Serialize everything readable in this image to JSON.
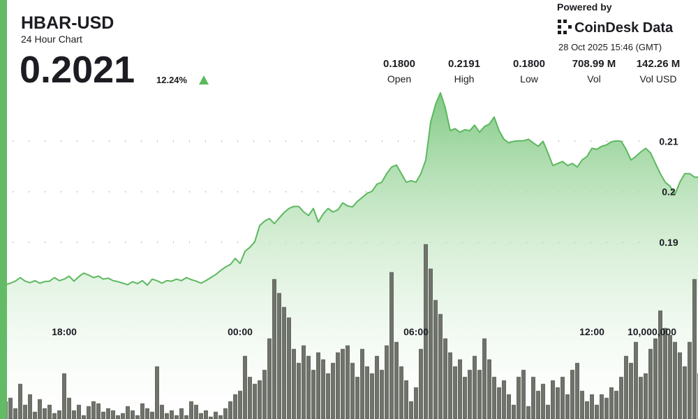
{
  "header": {
    "symbol": "HBAR-USD",
    "subtitle": "24 Hour Chart",
    "price": "0.2021",
    "change": "12.24%",
    "stats": [
      {
        "value": "0.1800",
        "label": "Open"
      },
      {
        "value": "0.2191",
        "label": "High"
      },
      {
        "value": "0.1800",
        "label": "Low"
      },
      {
        "value": "708.99 M",
        "label": "Vol"
      },
      {
        "value": "142.26 M",
        "label": "Vol USD"
      }
    ],
    "powered_by": "Powered by",
    "brand": "CoinDesk Data",
    "timestamp": "28 Oct 2025 15:46 (GMT)"
  },
  "chart_data": {
    "type": "line",
    "categories": [
      null,
      null,
      null,
      null,
      null,
      null,
      null,
      null,
      null,
      null,
      null,
      null,
      "18:00",
      null,
      null,
      null,
      null,
      null,
      null,
      null,
      null,
      null,
      null,
      null,
      null,
      null,
      null,
      null,
      null,
      null,
      null,
      null,
      null,
      null,
      null,
      null,
      null,
      null,
      null,
      null,
      null,
      null,
      null,
      null,
      null,
      null,
      null,
      null,
      "00:00",
      null,
      null,
      null,
      null,
      null,
      null,
      null,
      null,
      null,
      null,
      null,
      null,
      null,
      null,
      null,
      null,
      null,
      null,
      null,
      null,
      null,
      null,
      null,
      null,
      null,
      null,
      null,
      null,
      null,
      null,
      null,
      null,
      null,
      null,
      null,
      "06:00",
      null,
      null,
      null,
      null,
      null,
      null,
      null,
      null,
      null,
      null,
      null,
      null,
      null,
      null,
      null,
      null,
      null,
      null,
      null,
      null,
      null,
      null,
      null,
      null,
      null,
      null,
      null,
      null,
      null,
      null,
      null,
      null,
      null,
      null,
      null,
      "12:00",
      null,
      null,
      null,
      null,
      null,
      null,
      null,
      null,
      null,
      null,
      null,
      null,
      null,
      null,
      null,
      null,
      null,
      null,
      null,
      null,
      null,
      null,
      null
    ],
    "series": [
      {
        "type": "line",
        "color": "#5cb85f",
        "values": [
          0.1816,
          0.1819,
          0.1823,
          0.183,
          0.1823,
          0.182,
          0.1824,
          0.1819,
          0.1822,
          0.1823,
          0.183,
          0.1824,
          0.1827,
          0.1833,
          0.1823,
          0.1832,
          0.1839,
          0.1835,
          0.183,
          0.1833,
          0.1827,
          0.1829,
          0.1824,
          0.1822,
          0.1819,
          0.1816,
          0.1822,
          0.1818,
          0.1824,
          0.1815,
          0.1827,
          0.1824,
          0.1819,
          0.1824,
          0.1823,
          0.1827,
          0.1824,
          0.183,
          0.1826,
          0.1823,
          0.1819,
          0.1824,
          0.183,
          0.1836,
          0.1844,
          0.1851,
          0.1856,
          0.1868,
          0.1858,
          0.1882,
          0.189,
          0.1901,
          0.1933,
          0.1942,
          0.1947,
          0.1937,
          0.1948,
          0.1959,
          0.1967,
          0.1971,
          0.1971,
          0.196,
          0.1953,
          0.1967,
          0.194,
          0.1956,
          0.1967,
          0.196,
          0.1964,
          0.1978,
          0.1972,
          0.197,
          0.1981,
          0.1989,
          0.1997,
          0.2001,
          0.2015,
          0.2019,
          0.2036,
          0.2049,
          0.2053,
          0.2036,
          0.2019,
          0.2022,
          0.2019,
          0.2036,
          0.2063,
          0.2138,
          0.2173,
          0.2196,
          0.2166,
          0.2121,
          0.2125,
          0.2118,
          0.2123,
          0.2121,
          0.2132,
          0.2118,
          0.2129,
          0.2134,
          0.2148,
          0.2121,
          0.2104,
          0.2097,
          0.21,
          0.2101,
          0.2101,
          0.2104,
          0.2097,
          0.209,
          0.21,
          0.2077,
          0.2052,
          0.2056,
          0.206,
          0.2052,
          0.2056,
          0.2049,
          0.2063,
          0.207,
          0.2086,
          0.2084,
          0.209,
          0.2093,
          0.2099,
          0.2101,
          0.21,
          0.2084,
          0.2063,
          0.207,
          0.2079,
          0.2086,
          0.2077,
          0.2056,
          0.2036,
          0.2019,
          0.2011,
          0.1995,
          0.2019,
          0.2036,
          0.2036,
          0.2029,
          0.2029,
          0.2021
        ]
      },
      {
        "type": "bar",
        "axis": "y2",
        "color": "#6f736b",
        "values": [
          2000000,
          2400000,
          1200000,
          4000000,
          1600000,
          2800000,
          800000,
          2240000,
          1200000,
          1600000,
          640000,
          960000,
          5200000,
          2400000,
          960000,
          1600000,
          400000,
          1440000,
          2000000,
          1760000,
          800000,
          1200000,
          960000,
          400000,
          640000,
          1440000,
          960000,
          400000,
          1760000,
          1200000,
          800000,
          6000000,
          1600000,
          640000,
          960000,
          400000,
          1200000,
          400000,
          2000000,
          1600000,
          640000,
          960000,
          240000,
          800000,
          400000,
          1200000,
          2000000,
          2800000,
          3200000,
          7200000,
          4800000,
          4000000,
          4400000,
          5600000,
          9200000,
          16000000,
          14400000,
          12800000,
          11600000,
          8000000,
          6400000,
          8400000,
          7200000,
          5600000,
          7600000,
          6800000,
          5200000,
          6400000,
          7600000,
          8000000,
          8400000,
          6400000,
          4800000,
          8000000,
          6000000,
          5200000,
          7200000,
          5600000,
          8400000,
          16800000,
          8800000,
          6000000,
          4400000,
          2000000,
          3600000,
          8000000,
          20000000,
          17200000,
          13600000,
          12000000,
          9200000,
          7600000,
          6000000,
          6800000,
          4800000,
          5600000,
          7200000,
          5600000,
          9200000,
          6800000,
          4800000,
          3600000,
          4400000,
          2800000,
          1600000,
          4800000,
          5600000,
          1440000,
          4800000,
          3200000,
          4000000,
          1600000,
          4400000,
          3600000,
          4800000,
          2800000,
          5600000,
          6400000,
          3200000,
          2000000,
          2800000,
          1600000,
          2800000,
          2400000,
          3600000,
          3200000,
          4800000,
          7200000,
          6400000,
          8800000,
          4800000,
          5200000,
          8000000,
          9200000,
          12400000,
          10400000,
          9600000,
          8800000,
          7600000,
          6000000,
          8800000,
          16000000,
          5200000,
          6800000
        ]
      }
    ],
    "ylim": [
      0.155,
      0.22
    ],
    "yticks": [
      0.19,
      0.2,
      0.21
    ],
    "y2lim": [
      0,
      37600000
    ],
    "y2ticks": [
      {
        "value": 10000000,
        "label": "10,000,000"
      }
    ],
    "grid": true
  }
}
